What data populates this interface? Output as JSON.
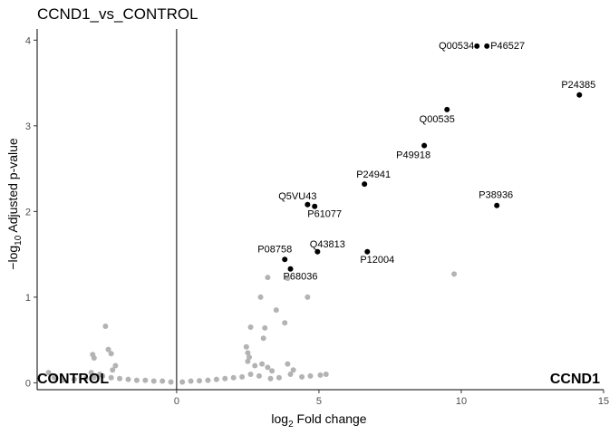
{
  "chart_data": {
    "type": "scatter",
    "title": "CCND1_vs_CONTROL",
    "xlabel_main": "log",
    "xlabel_sub": "2",
    "xlabel_rest": " Fold change",
    "ylabel_prefix": "−log",
    "ylabel_sub": "10",
    "ylabel_rest": " Adjusted p-value",
    "xlim": [
      -4.9,
      15
    ],
    "ylim": [
      -0.08,
      4.13
    ],
    "x_ticks": [
      0,
      5,
      10,
      15
    ],
    "y_ticks": [
      0,
      1,
      2,
      3,
      4
    ],
    "grid": false,
    "vline_x": 0,
    "group_labels": {
      "left": "CONTROL",
      "right": "CCND1"
    },
    "colors": {
      "significant": "#000000",
      "nonsignificant": "#b3b3b3",
      "axis": "#000000",
      "vline": "#000000"
    },
    "significant_points": [
      {
        "label": "Q00534",
        "x": 10.55,
        "y": 3.93
      },
      {
        "label": "P46527",
        "x": 10.9,
        "y": 3.93
      },
      {
        "label": "P24385",
        "x": 14.15,
        "y": 3.36
      },
      {
        "label": "Q00535",
        "x": 9.5,
        "y": 3.19
      },
      {
        "label": "P49918",
        "x": 8.7,
        "y": 2.77
      },
      {
        "label": "P24941",
        "x": 6.6,
        "y": 2.32
      },
      {
        "label": "P38936",
        "x": 11.25,
        "y": 2.07
      },
      {
        "label": "Q5VU43",
        "x": 4.6,
        "y": 2.08
      },
      {
        "label": "P61077",
        "x": 4.85,
        "y": 2.06
      },
      {
        "label": "Q43813",
        "x": 4.95,
        "y": 1.53
      },
      {
        "label": "P12004",
        "x": 6.7,
        "y": 1.53
      },
      {
        "label": "P08758",
        "x": 3.8,
        "y": 1.44
      },
      {
        "label": "P68036",
        "x": 4.0,
        "y": 1.33
      }
    ],
    "nonsignificant_points": [
      {
        "x": 9.75,
        "y": 1.27
      },
      {
        "x": 3.2,
        "y": 1.23
      },
      {
        "x": 3.9,
        "y": 1.22
      },
      {
        "x": 2.95,
        "y": 1.0
      },
      {
        "x": 4.6,
        "y": 1.0
      },
      {
        "x": 3.5,
        "y": 0.85
      },
      {
        "x": 3.8,
        "y": 0.7
      },
      {
        "x": 2.6,
        "y": 0.65
      },
      {
        "x": 3.1,
        "y": 0.64
      },
      {
        "x": 3.05,
        "y": 0.52
      },
      {
        "x": 2.45,
        "y": 0.42
      },
      {
        "x": 2.5,
        "y": 0.35
      },
      {
        "x": 2.55,
        "y": 0.3
      },
      {
        "x": 2.5,
        "y": 0.25
      },
      {
        "x": 2.75,
        "y": 0.2
      },
      {
        "x": 3.0,
        "y": 0.22
      },
      {
        "x": 3.2,
        "y": 0.18
      },
      {
        "x": 3.35,
        "y": 0.14
      },
      {
        "x": 3.9,
        "y": 0.22
      },
      {
        "x": 4.1,
        "y": 0.15
      },
      {
        "x": 4.0,
        "y": 0.1
      },
      {
        "x": 5.25,
        "y": 0.1
      },
      {
        "x": 5.05,
        "y": 0.09
      },
      {
        "x": 4.7,
        "y": 0.08
      },
      {
        "x": 4.4,
        "y": 0.07
      },
      {
        "x": 3.6,
        "y": 0.06
      },
      {
        "x": 3.3,
        "y": 0.05
      },
      {
        "x": 2.9,
        "y": 0.08
      },
      {
        "x": 2.6,
        "y": 0.1
      },
      {
        "x": 2.3,
        "y": 0.07
      },
      {
        "x": 2.0,
        "y": 0.06
      },
      {
        "x": 1.7,
        "y": 0.05
      },
      {
        "x": 1.4,
        "y": 0.04
      },
      {
        "x": 1.1,
        "y": 0.03
      },
      {
        "x": 0.8,
        "y": 0.025
      },
      {
        "x": 0.5,
        "y": 0.02
      },
      {
        "x": 0.2,
        "y": 0.01
      },
      {
        "x": -0.2,
        "y": 0.01
      },
      {
        "x": -0.5,
        "y": 0.02
      },
      {
        "x": -0.8,
        "y": 0.02
      },
      {
        "x": -1.1,
        "y": 0.03
      },
      {
        "x": -1.4,
        "y": 0.03
      },
      {
        "x": -1.7,
        "y": 0.04
      },
      {
        "x": -2.0,
        "y": 0.05
      },
      {
        "x": -2.3,
        "y": 0.06
      },
      {
        "x": -2.6,
        "y": 0.08
      },
      {
        "x": -2.9,
        "y": 0.06
      },
      {
        "x": -3.2,
        "y": 0.05
      },
      {
        "x": -3.6,
        "y": 0.04
      },
      {
        "x": -4.0,
        "y": 0.03
      },
      {
        "x": -4.5,
        "y": 0.12
      },
      {
        "x": -4.3,
        "y": 0.06
      },
      {
        "x": -3.0,
        "y": 0.12
      },
      {
        "x": -2.7,
        "y": 0.1
      },
      {
        "x": -2.5,
        "y": 0.66
      },
      {
        "x": -2.4,
        "y": 0.39
      },
      {
        "x": -2.3,
        "y": 0.34
      },
      {
        "x": -2.95,
        "y": 0.33
      },
      {
        "x": -2.9,
        "y": 0.29
      },
      {
        "x": -2.15,
        "y": 0.2
      },
      {
        "x": -2.25,
        "y": 0.15
      }
    ]
  }
}
